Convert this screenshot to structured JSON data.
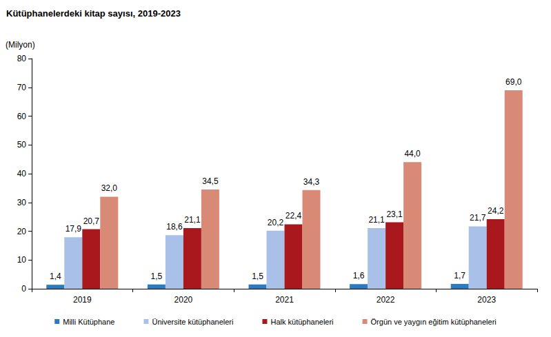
{
  "chart_data": {
    "type": "bar",
    "title": "Kütüphanelerdeki kitap sayısı, 2019-2023",
    "y_label": "(Milyon)",
    "categories": [
      "2019",
      "2020",
      "2021",
      "2022",
      "2023"
    ],
    "series": [
      {
        "name": "Milli Kütüphane",
        "color": "#2a7bbf",
        "values": [
          1.4,
          1.5,
          1.5,
          1.6,
          1.7
        ],
        "value_labels": [
          "1,4",
          "1,5",
          "1,5",
          "1,6",
          "1,7"
        ]
      },
      {
        "name": "Üniversite kütüphaneleri",
        "color": "#a9c1e8",
        "values": [
          17.9,
          18.6,
          20.2,
          21.1,
          21.7
        ],
        "value_labels": [
          "17,9",
          "18,6",
          "20,2",
          "21,1",
          "21,7"
        ]
      },
      {
        "name": "Halk kütüphaneleri",
        "color": "#a8181c",
        "values": [
          20.7,
          21.1,
          22.4,
          23.1,
          24.2
        ],
        "value_labels": [
          "20,7",
          "21,1",
          "22,4",
          "23,1",
          "24,2"
        ]
      },
      {
        "name": "Örgün ve yaygın eğitim kütüphaneleri",
        "color": "#d98a76",
        "values": [
          32.0,
          34.5,
          34.3,
          44.0,
          69.0
        ],
        "value_labels": [
          "32,0",
          "34,5",
          "34,3",
          "44,0",
          "69,0"
        ]
      }
    ],
    "ylim": [
      0,
      80
    ],
    "yticks": [
      0,
      10,
      20,
      30,
      40,
      50,
      60,
      70,
      80
    ],
    "grid": false,
    "legend": "bottom",
    "data_labels": true
  }
}
